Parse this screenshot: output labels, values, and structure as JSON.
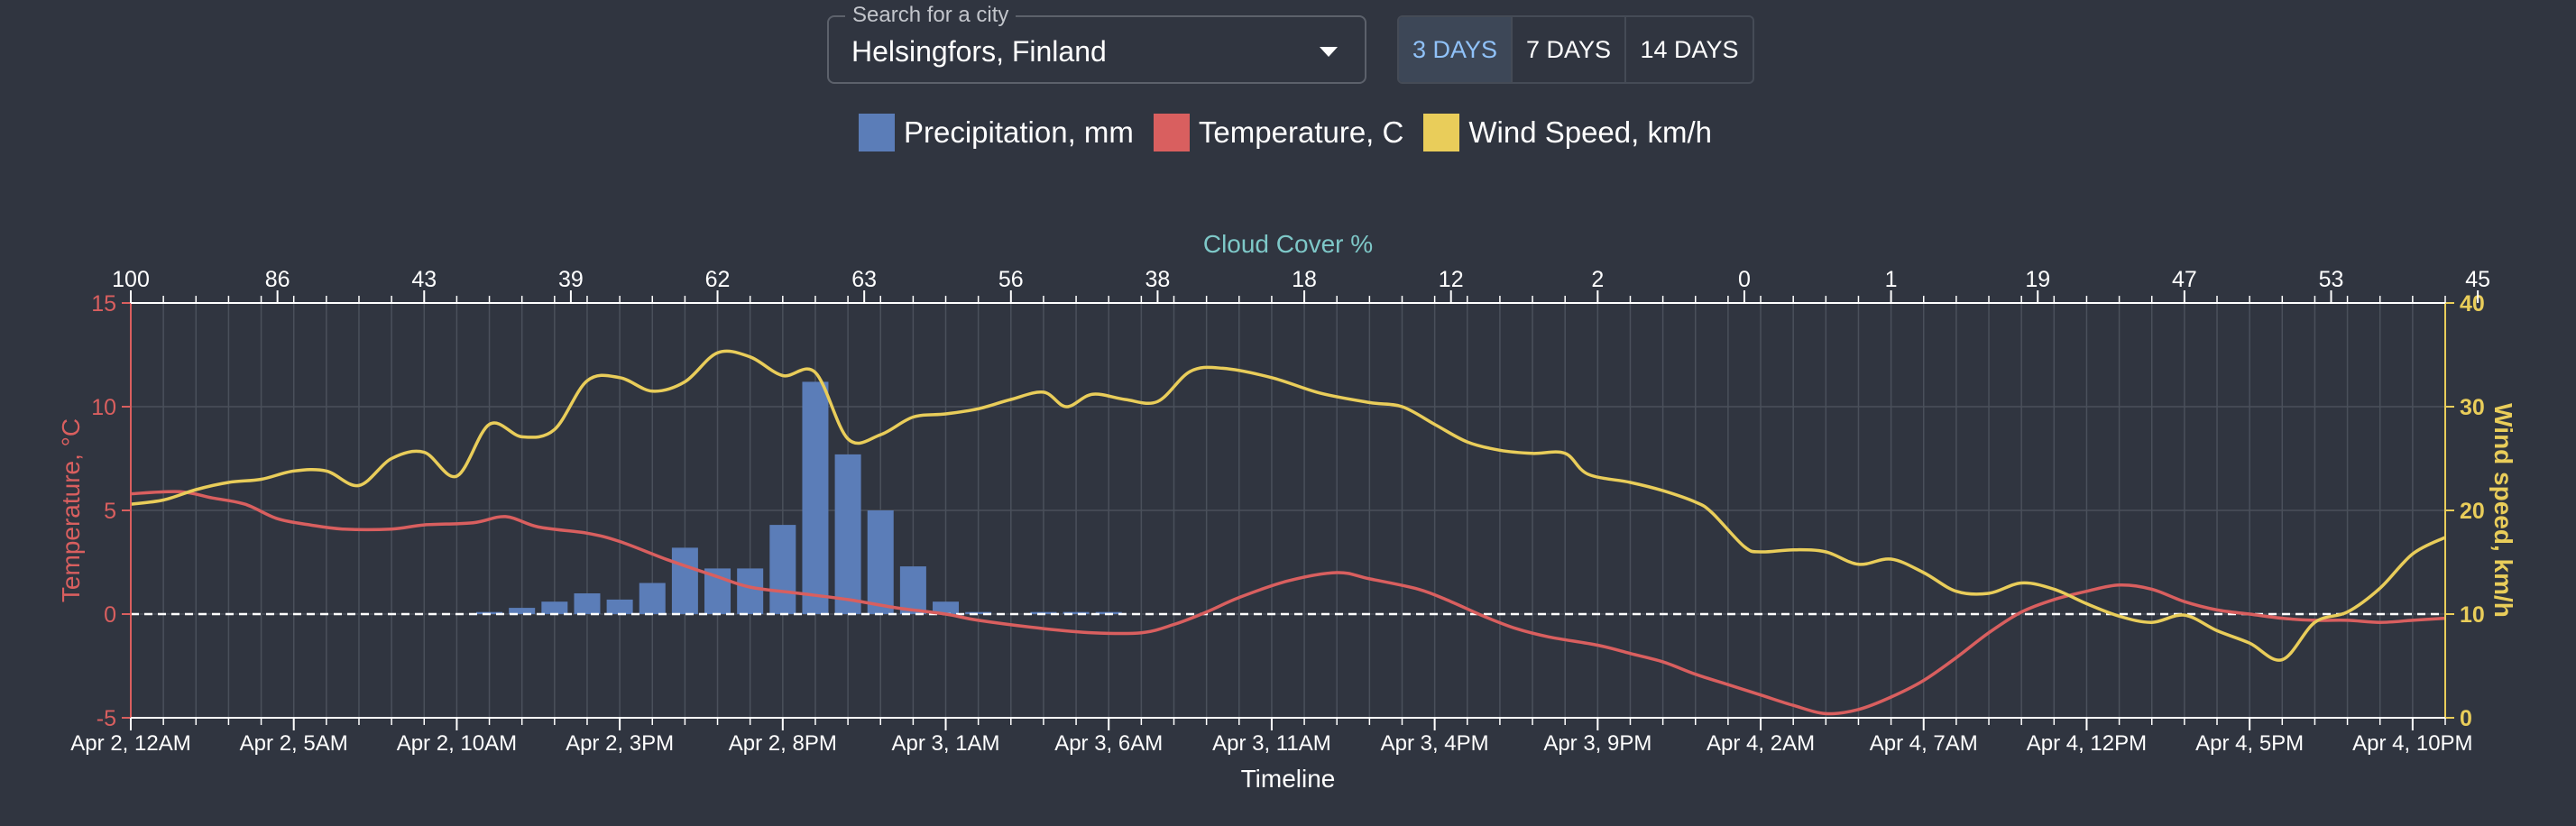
{
  "search": {
    "label": "Search for a city",
    "value": "Helsingfors, Finland"
  },
  "range_buttons": [
    {
      "label": "3 DAYS",
      "active": true
    },
    {
      "label": "7 DAYS",
      "active": false
    },
    {
      "label": "14 DAYS",
      "active": false
    }
  ],
  "legend": [
    {
      "label": "Precipitation, mm",
      "color": "#5b7db8"
    },
    {
      "label": "Temperature, C",
      "color": "#d95f5f"
    },
    {
      "label": "Wind Speed, km/h",
      "color": "#e9cd5a"
    }
  ],
  "chart_data": {
    "type": "combo",
    "x_label": "Timeline",
    "x_range_hours": [
      0,
      71
    ],
    "x_tick_labels": [
      "Apr 2, 12AM",
      "Apr 2, 5AM",
      "Apr 2, 10AM",
      "Apr 2, 3PM",
      "Apr 2, 8PM",
      "Apr 3, 1AM",
      "Apr 3, 6AM",
      "Apr 3, 11AM",
      "Apr 3, 4PM",
      "Apr 3, 9PM",
      "Apr 4, 2AM",
      "Apr 4, 7AM",
      "Apr 4, 12PM",
      "Apr 4, 5PM",
      "Apr 4, 10PM"
    ],
    "top_axis": {
      "label": "Cloud Cover %",
      "color": "#7ec8c8",
      "tick_hours": [
        0,
        4.5,
        9,
        13.5,
        18,
        22.5,
        27,
        31.5,
        36,
        40.5,
        45,
        49.5,
        54,
        58.5,
        63,
        67.5,
        72
      ],
      "tick_labels": [
        "100",
        "86",
        "43",
        "39",
        "62",
        "63",
        "56",
        "38",
        "18",
        "12",
        "2",
        "0",
        "1",
        "19",
        "47",
        "53",
        "45"
      ]
    },
    "left_axis": {
      "label": "Temperature, °C",
      "color": "#d95f5f",
      "range": [
        -5,
        15
      ],
      "ticks": [
        -5,
        0,
        5,
        10,
        15
      ]
    },
    "right_axis": {
      "label": "Wind speed, km/h",
      "color": "#e9cd5a",
      "range": [
        0,
        40
      ],
      "ticks": [
        0,
        10,
        20,
        30,
        40
      ]
    },
    "zero_line": 0,
    "series": [
      {
        "name": "Temperature, C",
        "type": "line",
        "axis": "left",
        "color": "#d95f5f",
        "points": [
          [
            0,
            5.8
          ],
          [
            1.5,
            5.9
          ],
          [
            2.5,
            5.6
          ],
          [
            3.5,
            5.3
          ],
          [
            4.5,
            4.6
          ],
          [
            5.5,
            4.3
          ],
          [
            6.5,
            4.1
          ],
          [
            8,
            4.1
          ],
          [
            9,
            4.3
          ],
          [
            10.5,
            4.4
          ],
          [
            11.5,
            4.7
          ],
          [
            12.5,
            4.2
          ],
          [
            14,
            3.9
          ],
          [
            15,
            3.5
          ],
          [
            16.5,
            2.6
          ],
          [
            18,
            1.8
          ],
          [
            19,
            1.3
          ],
          [
            20.5,
            1.0
          ],
          [
            22,
            0.7
          ],
          [
            23.5,
            0.3
          ],
          [
            25,
            0.0
          ],
          [
            26,
            -0.3
          ],
          [
            28,
            -0.7
          ],
          [
            29.5,
            -0.9
          ],
          [
            31,
            -0.9
          ],
          [
            32,
            -0.5
          ],
          [
            33,
            0.1
          ],
          [
            34,
            0.8
          ],
          [
            35.5,
            1.6
          ],
          [
            37,
            2.0
          ],
          [
            38,
            1.7
          ],
          [
            39.5,
            1.2
          ],
          [
            40.5,
            0.6
          ],
          [
            41.5,
            -0.1
          ],
          [
            42.5,
            -0.7
          ],
          [
            43.5,
            -1.1
          ],
          [
            45,
            -1.5
          ],
          [
            46,
            -1.9
          ],
          [
            47,
            -2.3
          ],
          [
            48,
            -2.9
          ],
          [
            49,
            -3.4
          ],
          [
            50,
            -3.9
          ],
          [
            51,
            -4.4
          ],
          [
            52,
            -4.8
          ],
          [
            53,
            -4.6
          ],
          [
            54,
            -4.0
          ],
          [
            55,
            -3.2
          ],
          [
            56,
            -2.1
          ],
          [
            57,
            -0.9
          ],
          [
            58,
            0.1
          ],
          [
            59,
            0.7
          ],
          [
            60,
            1.1
          ],
          [
            61,
            1.4
          ],
          [
            62,
            1.2
          ],
          [
            63,
            0.6
          ],
          [
            64,
            0.2
          ],
          [
            65,
            0.0
          ],
          [
            66,
            -0.2
          ],
          [
            67,
            -0.3
          ],
          [
            68,
            -0.3
          ],
          [
            69,
            -0.4
          ],
          [
            70,
            -0.3
          ],
          [
            71,
            -0.2
          ]
        ]
      },
      {
        "name": "Wind Speed, km/h",
        "type": "line",
        "axis": "right",
        "color": "#e9cd5a",
        "points": [
          [
            0,
            20.6
          ],
          [
            1,
            21.0
          ],
          [
            2,
            22.0
          ],
          [
            3,
            22.7
          ],
          [
            4,
            23.0
          ],
          [
            5,
            23.8
          ],
          [
            6,
            23.8
          ],
          [
            7,
            22.4
          ],
          [
            8,
            25.0
          ],
          [
            9,
            25.6
          ],
          [
            10,
            23.3
          ],
          [
            11,
            28.3
          ],
          [
            12,
            27.1
          ],
          [
            13,
            27.8
          ],
          [
            14,
            32.5
          ],
          [
            15,
            32.8
          ],
          [
            16,
            31.5
          ],
          [
            17,
            32.4
          ],
          [
            18,
            35.2
          ],
          [
            19,
            34.8
          ],
          [
            20,
            33.0
          ],
          [
            21,
            33.3
          ],
          [
            22,
            26.9
          ],
          [
            23,
            27.3
          ],
          [
            24,
            29.0
          ],
          [
            25,
            29.3
          ],
          [
            26,
            29.8
          ],
          [
            27,
            30.7
          ],
          [
            28,
            31.4
          ],
          [
            28.7,
            30.0
          ],
          [
            29.5,
            31.2
          ],
          [
            30.5,
            30.7
          ],
          [
            31.5,
            30.5
          ],
          [
            32.5,
            33.4
          ],
          [
            33.5,
            33.7
          ],
          [
            35,
            32.8
          ],
          [
            36.5,
            31.3
          ],
          [
            38,
            30.4
          ],
          [
            39,
            30.0
          ],
          [
            40,
            28.3
          ],
          [
            41,
            26.6
          ],
          [
            42,
            25.8
          ],
          [
            43,
            25.5
          ],
          [
            44,
            25.5
          ],
          [
            44.7,
            23.5
          ],
          [
            46,
            22.7
          ],
          [
            47,
            21.9
          ],
          [
            48,
            20.8
          ],
          [
            48.5,
            19.8
          ],
          [
            49.5,
            16.5
          ],
          [
            50,
            16.0
          ],
          [
            51,
            16.2
          ],
          [
            52,
            16.0
          ],
          [
            53,
            14.8
          ],
          [
            54,
            15.3
          ],
          [
            55,
            14.0
          ],
          [
            56,
            12.2
          ],
          [
            57,
            12.0
          ],
          [
            58,
            13.0
          ],
          [
            59,
            12.4
          ],
          [
            60,
            11.0
          ],
          [
            61,
            9.8
          ],
          [
            62,
            9.2
          ],
          [
            63,
            9.9
          ],
          [
            64,
            8.4
          ],
          [
            65,
            7.2
          ],
          [
            66,
            5.6
          ],
          [
            67,
            9.2
          ],
          [
            68,
            10.2
          ],
          [
            69,
            12.5
          ],
          [
            70,
            15.8
          ],
          [
            71,
            17.4
          ]
        ]
      },
      {
        "name": "Precipitation, mm",
        "type": "bar",
        "axis": "left",
        "color": "#5b7db8",
        "hours": [
          11,
          12,
          13,
          14,
          15,
          16,
          17,
          18,
          19,
          20,
          21,
          22,
          23,
          24,
          25,
          26,
          28,
          29,
          30
        ],
        "values": [
          0.1,
          0.3,
          0.6,
          1.0,
          0.7,
          1.5,
          3.2,
          2.2,
          2.2,
          4.3,
          11.2,
          7.7,
          5.0,
          2.3,
          0.6,
          0.1,
          0.1,
          0.1,
          0.1
        ]
      }
    ]
  }
}
